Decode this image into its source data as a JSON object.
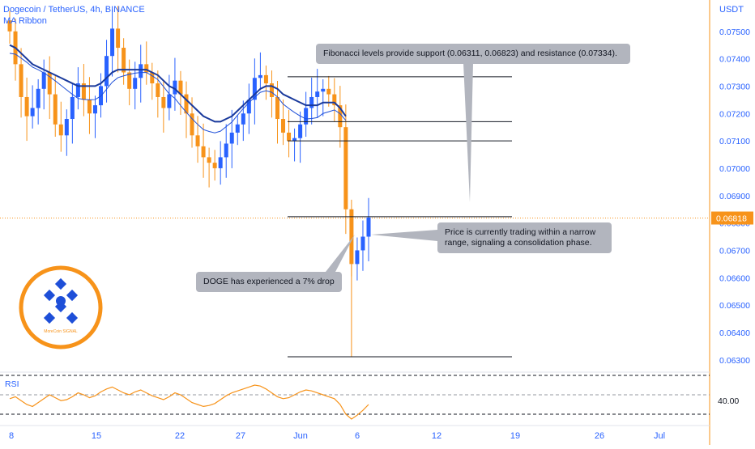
{
  "header": {
    "symbol_line": "Dogecoin / TetherUS, 4h, BINANCE",
    "indicator": "MA Ribbon"
  },
  "price_axis": {
    "currency": "USDT",
    "ticks": [
      "0.07500",
      "0.07400",
      "0.07300",
      "0.07200",
      "0.07100",
      "0.07000",
      "0.06900",
      "0.06800",
      "0.06700",
      "0.06600",
      "0.06500",
      "0.06400",
      "0.06300"
    ],
    "last_price_label": "0.06818",
    "last_price_color": "#f7931a"
  },
  "rsi_panel": {
    "label": "RSI",
    "value_label": "40.00",
    "line_color": "#f7931a"
  },
  "time_axis": {
    "labels": [
      "8",
      "15",
      "22",
      "27",
      "Jun",
      "6",
      "12",
      "19",
      "26",
      "Jul"
    ]
  },
  "annotations": {
    "fib_note": "Fibonacci levels provide support (0.06311, 0.06823) and resistance (0.07334).",
    "range_note": "Price is currently trading within a narrow range, signaling a consolidation phase.",
    "drop_note": "DOGE has experienced a 7% drop"
  },
  "logo": {
    "caption": "MoreCoin SIGNAL"
  },
  "colors": {
    "up": "#2962ff",
    "down": "#f7931a",
    "ma_fast": "#1e4fd8",
    "ma_slow": "#1a3a9c",
    "axis_text": "#2962ff",
    "rsi_line": "#f7931a"
  },
  "chart_data": [
    {
      "type": "candlestick",
      "title": "Dogecoin / TetherUS, 4h, BINANCE",
      "ylabel": "USDT",
      "ylim": [
        0.0625,
        0.076
      ],
      "x_tick_labels": [
        "8",
        "15",
        "22",
        "27",
        "Jun",
        "6",
        "12",
        "19",
        "26",
        "Jul"
      ],
      "series": [
        {
          "values": [
            0.075,
            0.0738,
            0.0726,
            0.0719,
            0.0722,
            0.0729,
            0.0735,
            0.0727,
            0.0716,
            0.0712,
            0.0718,
            0.0726,
            0.0731,
            0.0725,
            0.072,
            0.0723,
            0.073,
            0.0741,
            0.0751,
            0.0744,
            0.0735,
            0.0729,
            0.0733,
            0.0738,
            0.0735,
            0.0731,
            0.0726,
            0.0722,
            0.0727,
            0.0732,
            0.0727,
            0.072,
            0.0712,
            0.0708,
            0.0704,
            0.0702,
            0.07,
            0.0704,
            0.0709,
            0.0713,
            0.0716,
            0.072,
            0.0725,
            0.0733,
            0.0734,
            0.0731,
            0.0726,
            0.0718,
            0.0713,
            0.071,
            0.0711,
            0.0716,
            0.0722,
            0.0726,
            0.0728,
            0.0729,
            0.0727,
            0.0723,
            0.0715,
            0.0685,
            0.0665,
            0.067,
            0.0675,
            0.0682
          ]
        },
        {
          "name": "MA Ribbon",
          "values": [
            0.0745,
            0.0744,
            0.0742,
            0.074,
            0.0738,
            0.0737,
            0.0736,
            0.0735,
            0.0734,
            0.0733,
            0.0732,
            0.0731,
            0.073,
            0.073,
            0.073,
            0.073,
            0.0731,
            0.0733,
            0.0735,
            0.0736,
            0.0736,
            0.0736,
            0.0736,
            0.0736,
            0.0736,
            0.0735,
            0.0734,
            0.0732,
            0.073,
            0.0729,
            0.0727,
            0.0725,
            0.0723,
            0.0721,
            0.0719,
            0.0718,
            0.0717,
            0.0717,
            0.0718,
            0.0719,
            0.0721,
            0.0723,
            0.0725,
            0.0727,
            0.0729,
            0.073,
            0.073,
            0.0729,
            0.0727,
            0.0726,
            0.0725,
            0.0724,
            0.0723,
            0.0723,
            0.0723,
            0.0724,
            0.0724,
            0.0724,
            0.0722,
            0.0719
          ]
        }
      ],
      "horizontal_levels": [
        0.07334,
        0.0717,
        0.071,
        0.06823,
        0.06311
      ],
      "last_price": 0.06818
    },
    {
      "type": "line",
      "title": "RSI",
      "levels": [
        70,
        50,
        30
      ],
      "series": [
        {
          "values": [
            46,
            48,
            44,
            40,
            38,
            42,
            46,
            50,
            47,
            44,
            45,
            48,
            52,
            50,
            47,
            49,
            53,
            56,
            58,
            55,
            52,
            50,
            53,
            55,
            52,
            49,
            47,
            45,
            48,
            52,
            50,
            46,
            42,
            40,
            38,
            39,
            41,
            45,
            49,
            52,
            54,
            56,
            58,
            60,
            59,
            56,
            52,
            48,
            46,
            47,
            50,
            53,
            55,
            54,
            52,
            50,
            48,
            46,
            40,
            30,
            25,
            29,
            34,
            40
          ]
        }
      ]
    }
  ]
}
